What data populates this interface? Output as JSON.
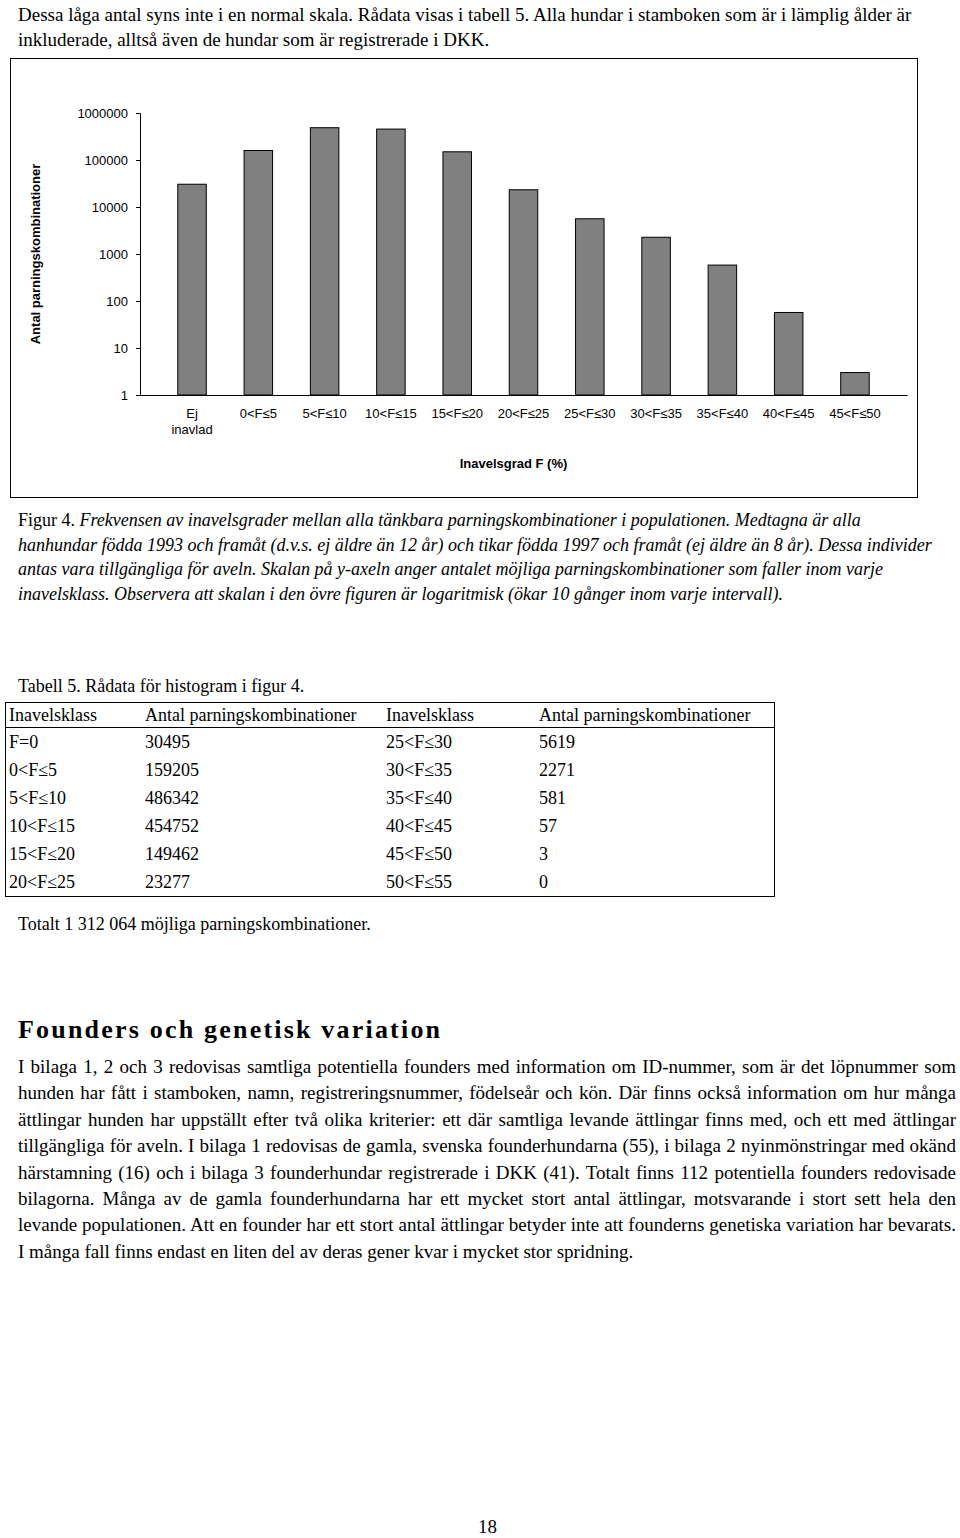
{
  "intro": "Dessa låga antal syns inte i en normal skala. Rådata visas i tabell 5. Alla hundar i stamboken som är i lämplig ålder är inkluderade, alltså även de hundar som är registrerade i DKK.",
  "chart_data": {
    "type": "bar",
    "categories": [
      "Ej inavlad",
      "0<F≤5",
      "5<F≤10",
      "10<F≤15",
      "15<F≤20",
      "20<F≤25",
      "25<F≤30",
      "30<F≤35",
      "35<F≤40",
      "40<F≤45",
      "45<F≤50"
    ],
    "values": [
      30495,
      159205,
      486342,
      454752,
      149462,
      23277,
      5619,
      2271,
      581,
      57,
      3
    ],
    "color": "#808080",
    "log": "y",
    "grid": false,
    "ylim": [
      1,
      1000000
    ],
    "yticks": [
      1,
      10,
      100,
      1000,
      10000,
      100000,
      1000000
    ],
    "x_label": "Inavelsgrad F (%)",
    "y_label": "Antal parningskombinationer"
  },
  "figure_label": "Figur 4.",
  "caption": "Frekvensen av inavelsgrader mellan alla tänkbara parningskombinationer i populationen. Medtagna är alla hanhundar födda 1993 och framåt (d.v.s. ej äldre än 12 år) och tikar födda 1997 och framåt (ej äldre än 8 år). Dessa individer antas vara tillgängliga för aveln. Skalan på y-axeln anger antalet möjliga parningskombinationer som faller inom varje inavelsklass. Observera att skalan i den övre figuren är logaritmisk (ökar 10 gånger inom varje intervall).",
  "table": {
    "title": "Tabell 5. Rådata för histogram i figur 4.",
    "header": [
      "Inavelsklass",
      "Antal parningskombinationer",
      "Inavelsklass",
      "Antal parningskombinationer"
    ],
    "rows": [
      [
        "F=0",
        30495,
        "25<F≤30",
        5619
      ],
      [
        "0<F≤5",
        159205,
        "30<F≤35",
        2271
      ],
      [
        "5<F≤10",
        486342,
        "35<F≤40",
        581
      ],
      [
        "10<F≤15",
        454752,
        "40<F≤45",
        57
      ],
      [
        "15<F≤20",
        149462,
        "45<F≤50",
        3
      ],
      [
        "20<F≤25",
        23277,
        "50<F≤55",
        0
      ]
    ],
    "total": "Totalt 1 312 064 möjliga parningskombinationer."
  },
  "section": {
    "heading": "Founders och genetisk variation",
    "paragraph": "I bilaga 1, 2 och 3 redovisas samtliga potentiella founders med information om ID-nummer, som är det löpnummer som hunden har fått i stamboken, namn, registreringsnummer, födelseår och kön. Där finns också information om hur många ättlingar hunden har uppställt efter två olika kriterier: ett där samtliga levande ättlingar finns med, och ett med ättlingar tillgängliga för aveln. I bilaga 1 redovisas de gamla, svenska founderhundarna (55), i bilaga 2 nyinmönstringar med okänd härstamning (16) och i bilaga 3 founderhundar registrerade i DKK (41). Totalt finns 112 potentiella founders redovisade bilagorna. Många av de gamla founderhundarna har ett mycket stort antal ättlingar, motsvarande i stort sett hela den levande populationen. Att en founder har ett stort antal ättlingar betyder inte att founderns genetiska variation har bevarats. I många fall finns endast en liten del av deras gener kvar i mycket stor spridning."
  },
  "page_number": "18"
}
